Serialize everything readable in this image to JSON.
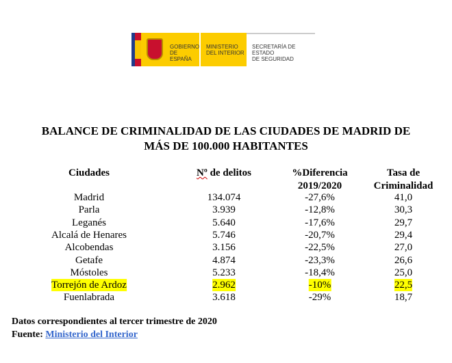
{
  "logo": {
    "gobierno": "GOBIERNO\nDE ESPAÑA",
    "ministerio": "MINISTERIO\nDEL INTERIOR",
    "secretaria": "SECRETARÍA DE ESTADO\nDE SEGURIDAD"
  },
  "title": {
    "line1": "BALANCE DE CRIMINALIDAD DE LAS CIUDADES DE MADRID DE",
    "line2": "MÁS DE 100.000 HABITANTES"
  },
  "table": {
    "headers": {
      "city": "Ciudades",
      "crimes_prefix": "Nº",
      "crimes_rest": " de delitos",
      "diff1": "%Diferencia",
      "diff2": "2019/2020",
      "rate1": "Tasa de",
      "rate2": "Criminalidad"
    },
    "rows": [
      {
        "city": "Madrid",
        "crimes": "134.074",
        "diff": "-27,6%",
        "rate": "41,0"
      },
      {
        "city": "Parla",
        "crimes": "3.939",
        "diff": "-12,8%",
        "rate": "30,3"
      },
      {
        "city": "Leganés",
        "crimes": "5.640",
        "diff": "-17,6%",
        "rate": "29,7"
      },
      {
        "city": "Alcalá de Henares",
        "crimes": "5.746",
        "diff": "-20,7%",
        "rate": "29,4"
      },
      {
        "city": "Alcobendas",
        "crimes": "3.156",
        "diff": "-22,5%",
        "rate": "27,0"
      },
      {
        "city": "Getafe",
        "crimes": "4.874",
        "diff": "-23,3%",
        "rate": "26,6"
      },
      {
        "city": "Móstoles",
        "crimes": "5.233",
        "diff": "-18,4%",
        "rate": "25,0"
      },
      {
        "city": "Torrejón de Ardoz",
        "crimes": "2.962",
        "diff": "-10%",
        "rate": "22,5",
        "highlighted": true
      },
      {
        "city": "Fuenlabrada",
        "crimes": "3.618",
        "diff": "-29%",
        "rate": "18,7"
      }
    ]
  },
  "footer": {
    "note": "Datos correspondientes al tercer trimestre de 2020",
    "source_label": "Fuente: ",
    "source_link": "Ministerio del Interior"
  },
  "colors": {
    "highlight": "#ffff00",
    "link": "#3366cc"
  }
}
